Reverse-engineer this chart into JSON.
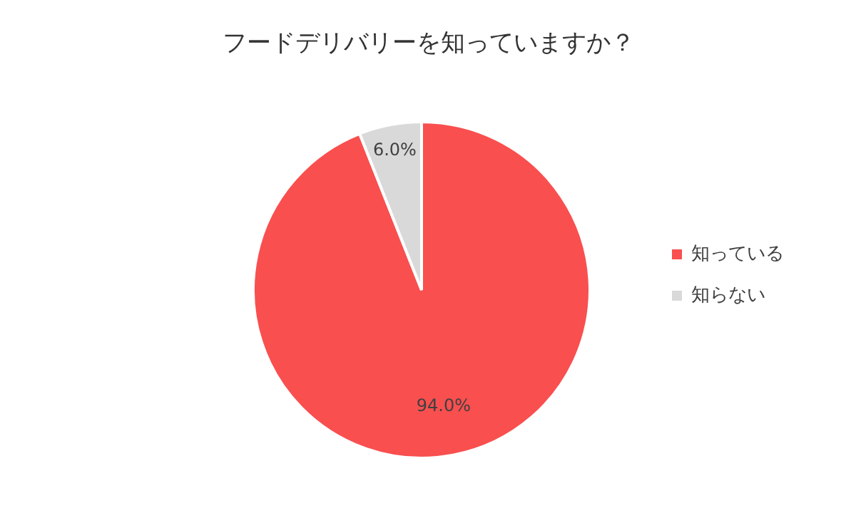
{
  "chart_data": {
    "type": "pie",
    "title": "フードデリバリーを知っていますか？",
    "categories": [
      "知っている",
      "知らない"
    ],
    "values": [
      94.0,
      6.0
    ],
    "colors": [
      "#f94f4f",
      "#d9d9d9"
    ],
    "value_labels": [
      "94.0%",
      "6.0%"
    ],
    "legend": "right"
  }
}
